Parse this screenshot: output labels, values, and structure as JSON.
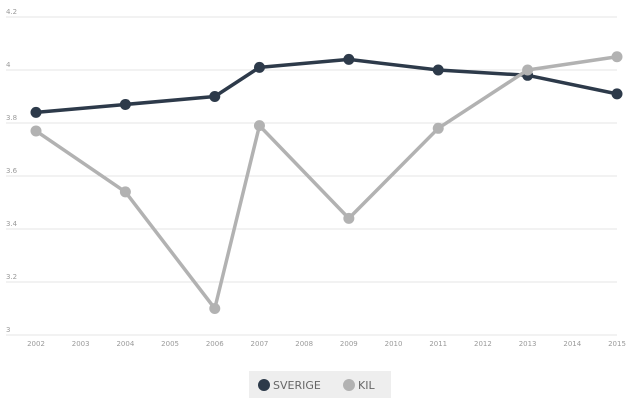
{
  "chart_data": {
    "type": "line",
    "x": [
      "2002",
      "2003",
      "2004",
      "2005",
      "2006",
      "2007",
      "2008",
      "2009",
      "2010",
      "2011",
      "2012",
      "2013",
      "2014",
      "2015"
    ],
    "y_ticks": [
      "3",
      "3.2",
      "3.4",
      "3.6",
      "3.8",
      "4",
      "4.2"
    ],
    "ylim": [
      3,
      4.2
    ],
    "grid": true,
    "legend_position": "bottom-center",
    "series": [
      {
        "name": "SVERIGE",
        "color": "#2d3a4a",
        "points": [
          {
            "x": "2002",
            "y": 3.84
          },
          {
            "x": "2004",
            "y": 3.87
          },
          {
            "x": "2006",
            "y": 3.9
          },
          {
            "x": "2007",
            "y": 4.01
          },
          {
            "x": "2009",
            "y": 4.04
          },
          {
            "x": "2011",
            "y": 4.0
          },
          {
            "x": "2013",
            "y": 3.98
          },
          {
            "x": "2015",
            "y": 3.91
          }
        ]
      },
      {
        "name": "KIL",
        "color": "#b2b2b2",
        "points": [
          {
            "x": "2002",
            "y": 3.77
          },
          {
            "x": "2004",
            "y": 3.54
          },
          {
            "x": "2006",
            "y": 3.1
          },
          {
            "x": "2007",
            "y": 3.79
          },
          {
            "x": "2009",
            "y": 3.44
          },
          {
            "x": "2011",
            "y": 3.78
          },
          {
            "x": "2013",
            "y": 4.0
          },
          {
            "x": "2015",
            "y": 4.05
          }
        ]
      }
    ]
  }
}
